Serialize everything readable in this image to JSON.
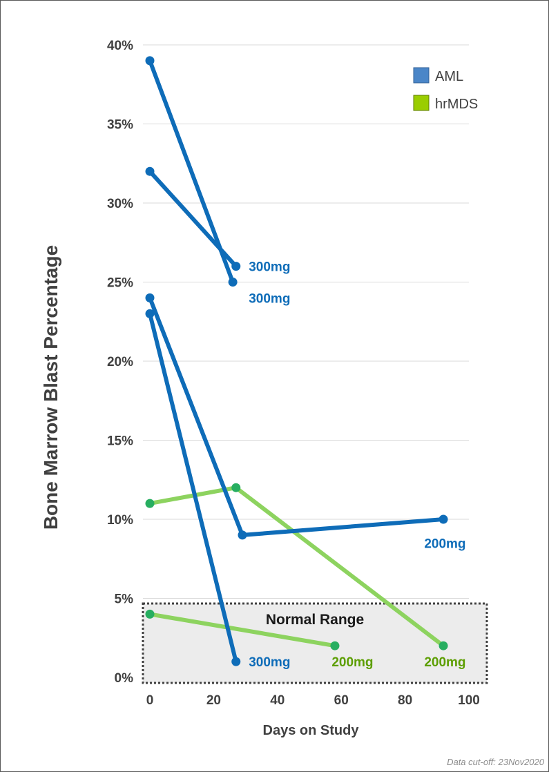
{
  "colors": {
    "aml": "#0e6cb8",
    "aml_legend": "#4a86c8",
    "hrmds_line": "#8dd35f",
    "hrmds_marker": "#27ae60",
    "hrmds_legend": "#9acd00",
    "hrmds_dose_text": "#5c9e00",
    "grid": "#d9d9d9",
    "normal_fill": "#ececec"
  },
  "footnote": "Data cut-off: 23Nov2020",
  "chart_data": {
    "type": "line",
    "title": "",
    "xlabel": "Days on Study",
    "ylabel": "Bone Marrow Blast Percentage",
    "xlim": [
      0,
      100
    ],
    "ylim": [
      0,
      40
    ],
    "x_ticks": [
      "0",
      "20",
      "40",
      "60",
      "80",
      "100"
    ],
    "y_ticks": [
      "0%",
      "5%",
      "10%",
      "15%",
      "20%",
      "25%",
      "30%",
      "35%",
      "40%"
    ],
    "grid": true,
    "legend": {
      "position": "top-right",
      "entries": [
        {
          "name": "AML",
          "color_key": "aml_legend"
        },
        {
          "name": "hrMDS",
          "color_key": "hrmds_legend"
        }
      ]
    },
    "normal_range": {
      "label": "Normal Range",
      "y_min": 0,
      "y_max": 5
    },
    "series": [
      {
        "group": "AML",
        "dose": "300mg",
        "points": [
          [
            0,
            39
          ],
          [
            26,
            25
          ]
        ]
      },
      {
        "group": "AML",
        "dose": "300mg",
        "points": [
          [
            0,
            32
          ],
          [
            27,
            26
          ]
        ]
      },
      {
        "group": "AML",
        "dose": "200mg",
        "points": [
          [
            0,
            24
          ],
          [
            29,
            9
          ],
          [
            92,
            10
          ]
        ]
      },
      {
        "group": "AML",
        "dose": "300mg",
        "points": [
          [
            0,
            23
          ],
          [
            27,
            1
          ]
        ]
      },
      {
        "group": "hrMDS",
        "dose": "200mg",
        "points": [
          [
            0,
            11
          ],
          [
            27,
            12
          ],
          [
            92,
            2
          ]
        ]
      },
      {
        "group": "hrMDS",
        "dose": "200mg",
        "points": [
          [
            0,
            4
          ],
          [
            58,
            2
          ]
        ]
      }
    ],
    "annotations": [
      {
        "text": "300mg",
        "group": "AML",
        "x": 31,
        "y": 26
      },
      {
        "text": "300mg",
        "group": "AML",
        "x": 31,
        "y": 24
      },
      {
        "text": "200mg",
        "group": "AML",
        "x": 86,
        "y": 8.5
      },
      {
        "text": "300mg",
        "group": "AML",
        "x": 31,
        "y": 1
      },
      {
        "text": "200mg",
        "group": "hrMDS",
        "x": 57,
        "y": 1
      },
      {
        "text": "200mg",
        "group": "hrMDS",
        "x": 86,
        "y": 1
      }
    ]
  }
}
